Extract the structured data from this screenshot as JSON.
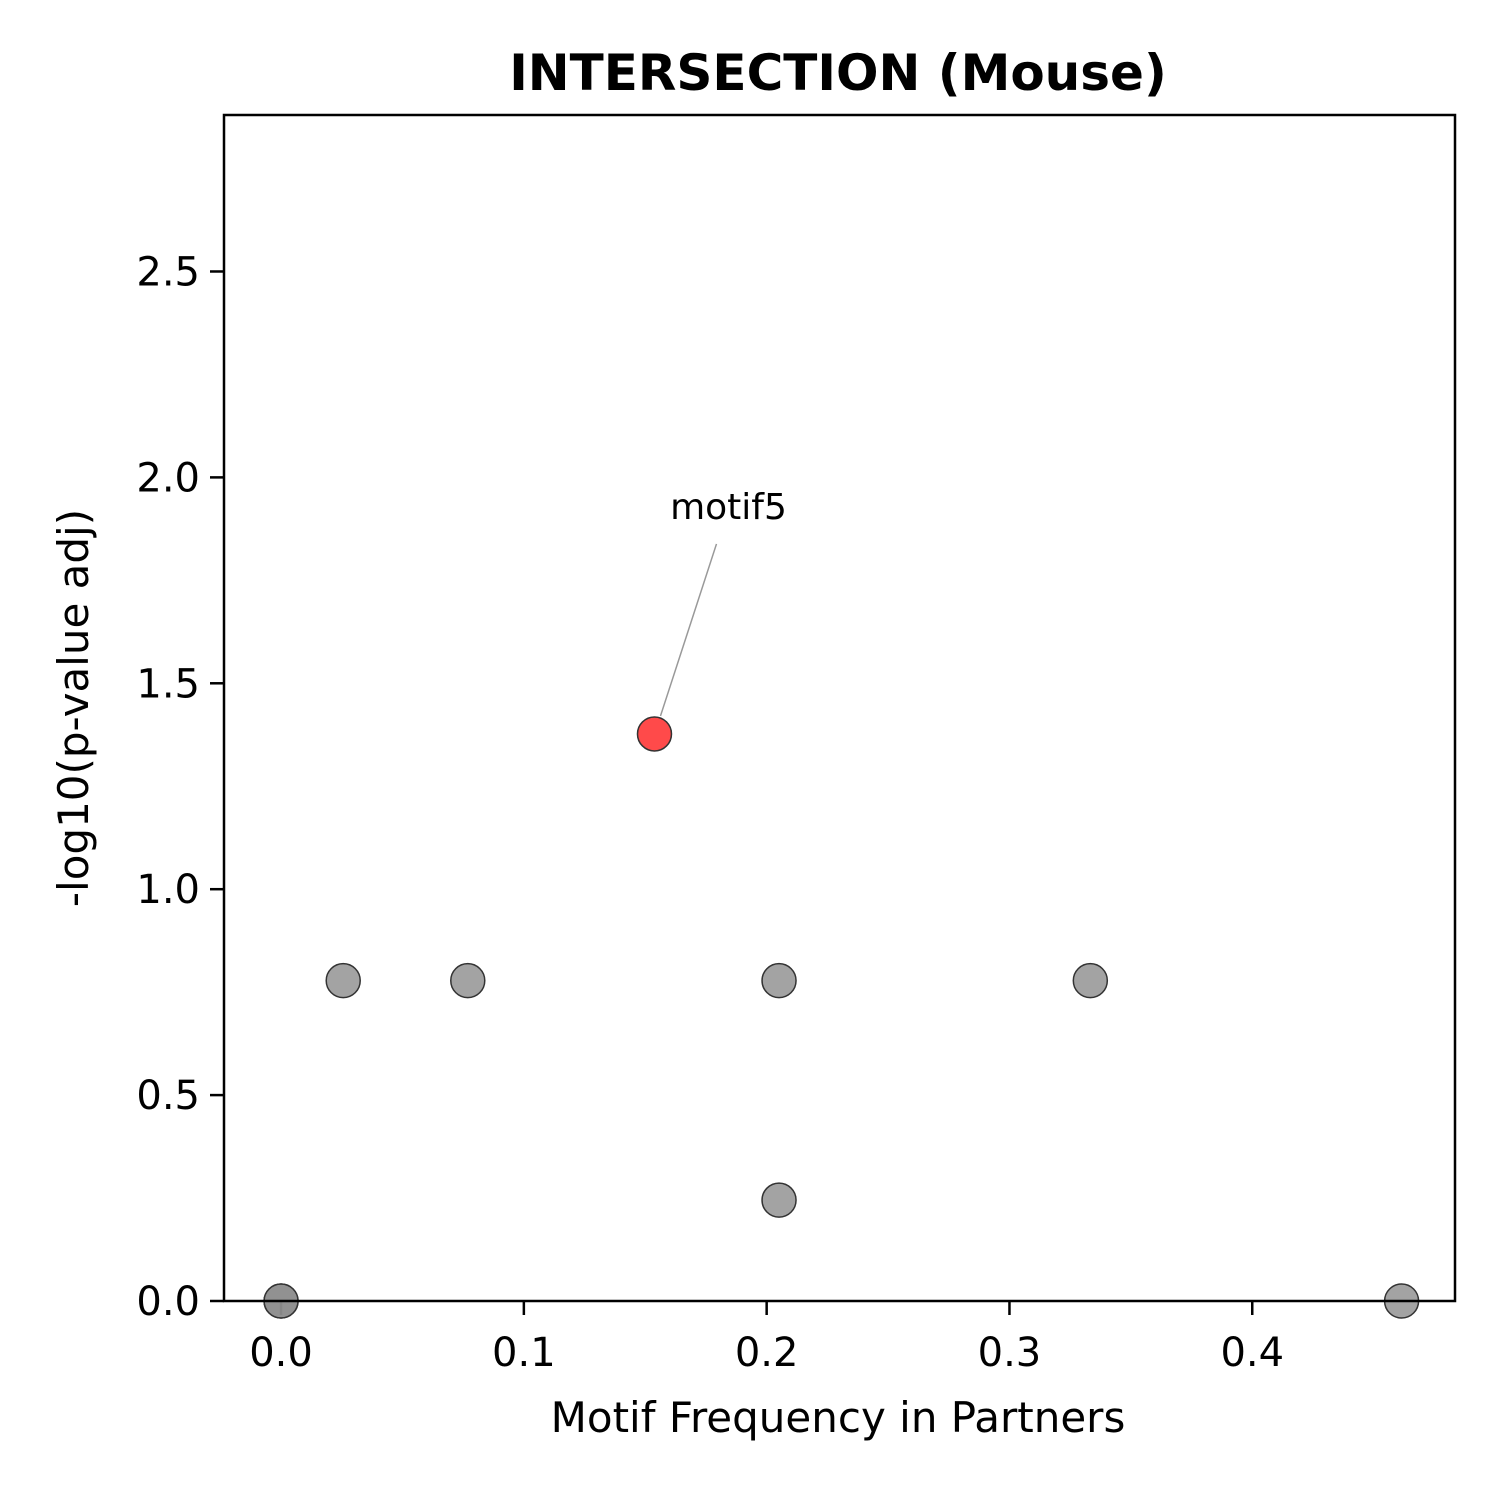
{
  "chart_data": {
    "type": "scatter",
    "title": "INTERSECTION (Mouse)",
    "xlabel": "Motif Frequency in Partners",
    "ylabel": "-log10(p-value adj)",
    "xlim": [
      -0.0235,
      0.4835
    ],
    "ylim": [
      0,
      2.88
    ],
    "xticks": [
      0.0,
      0.1,
      0.2,
      0.3,
      0.4
    ],
    "xtick_labels": [
      "0.0",
      "0.1",
      "0.2",
      "0.3",
      "0.4"
    ],
    "yticks": [
      0.0,
      0.5,
      1.0,
      1.5,
      2.0,
      2.5
    ],
    "ytick_labels": [
      "0.0",
      "0.5",
      "1.0",
      "1.5",
      "2.0",
      "2.5"
    ],
    "grid": false,
    "points": [
      {
        "x": 0.0,
        "y": 0.0,
        "highlight": false
      },
      {
        "x": 0.0,
        "y": 0.0,
        "highlight": false
      },
      {
        "x": 0.0256,
        "y": 0.778,
        "highlight": false
      },
      {
        "x": 0.0769,
        "y": 0.778,
        "highlight": false
      },
      {
        "x": 0.2051,
        "y": 0.778,
        "highlight": false
      },
      {
        "x": 0.3333,
        "y": 0.778,
        "highlight": false
      },
      {
        "x": 0.2051,
        "y": 0.245,
        "highlight": false
      },
      {
        "x": 0.4615,
        "y": 0.0,
        "highlight": false
      },
      {
        "x": 0.1538,
        "y": 1.377,
        "highlight": true
      }
    ],
    "annotations": [
      {
        "text": "motif5",
        "x": 0.1538,
        "y": 1.377
      }
    ],
    "colors": {
      "default": "#8c8c8c",
      "highlight": "#ff2a2a",
      "edge": "#333333"
    }
  }
}
